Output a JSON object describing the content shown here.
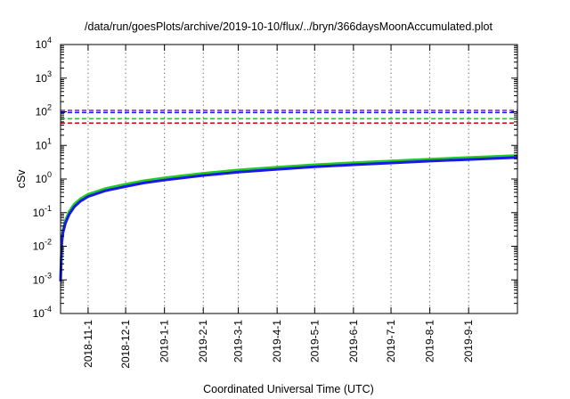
{
  "chart_data": {
    "type": "line",
    "title": "/data/run/goesPlots/archive/2019-10-10/flux/../bryn/366daysMoonAccumulated.plot",
    "xlabel": "Coordinated Universal Time (UTC)",
    "ylabel": "cSv",
    "yscale": "log",
    "ylim": [
      0.0001,
      10000
    ],
    "xlim": [
      "2018-10-10",
      "2019-10-10"
    ],
    "y_tick_labels": [
      {
        "value": 0.0001,
        "base": "10",
        "exp": "-4"
      },
      {
        "value": 0.001,
        "base": "10",
        "exp": "-3"
      },
      {
        "value": 0.01,
        "base": "10",
        "exp": "-2"
      },
      {
        "value": 0.1,
        "base": "10",
        "exp": "-1"
      },
      {
        "value": 1,
        "base": "10",
        "exp": "0"
      },
      {
        "value": 10,
        "base": "10",
        "exp": "1"
      },
      {
        "value": 100,
        "base": "10",
        "exp": "2"
      },
      {
        "value": 1000,
        "base": "10",
        "exp": "3"
      },
      {
        "value": 10000,
        "base": "10",
        "exp": "4"
      }
    ],
    "x_ticks": [
      {
        "date": "2018-11-01",
        "label": "2018-11-1"
      },
      {
        "date": "2018-12-01",
        "label": "2018-12-1"
      },
      {
        "date": "2019-01-01",
        "label": "2019-1-1"
      },
      {
        "date": "2019-02-01",
        "label": "2019-2-1"
      },
      {
        "date": "2019-03-01",
        "label": "2019-3-1"
      },
      {
        "date": "2019-04-01",
        "label": "2019-4-1"
      },
      {
        "date": "2019-05-01",
        "label": "2019-5-1"
      },
      {
        "date": "2019-06-01",
        "label": "2019-6-1"
      },
      {
        "date": "2019-07-01",
        "label": "2019-7-1"
      },
      {
        "date": "2019-08-01",
        "label": "2019-8-1"
      },
      {
        "date": "2019-09-01",
        "label": "2019-9-1"
      }
    ],
    "grid": true,
    "thresholds": [
      {
        "value": 110,
        "color": "#8a2be2"
      },
      {
        "value": 95,
        "color": "#1a1ae6"
      },
      {
        "value": 62,
        "color": "#22cc22"
      },
      {
        "value": 46,
        "color": "#e01010"
      }
    ],
    "series": [
      {
        "color": "#22cc22",
        "x": [
          "2018-10-10",
          "2018-10-11",
          "2018-10-12",
          "2018-10-14",
          "2018-10-17",
          "2018-10-21",
          "2018-10-26",
          "2018-11-01",
          "2018-11-15",
          "2018-12-01",
          "2018-12-15",
          "2019-01-01",
          "2019-02-01",
          "2019-03-01",
          "2019-04-01",
          "2019-05-01",
          "2019-06-01",
          "2019-07-01",
          "2019-08-01",
          "2019-09-01",
          "2019-10-10"
        ],
        "y": [
          0.001,
          0.015,
          0.03,
          0.06,
          0.11,
          0.18,
          0.26,
          0.35,
          0.52,
          0.7,
          0.88,
          1.08,
          1.48,
          1.85,
          2.25,
          2.65,
          3.05,
          3.45,
          3.9,
          4.35,
          5.0
        ]
      },
      {
        "color": "#1a1ae6",
        "x": [
          "2018-10-10",
          "2018-10-11",
          "2018-10-12",
          "2018-10-14",
          "2018-10-17",
          "2018-10-21",
          "2018-10-26",
          "2018-11-01",
          "2018-11-15",
          "2018-12-01",
          "2018-12-15",
          "2019-01-01",
          "2019-02-01",
          "2019-03-01",
          "2019-04-01",
          "2019-05-01",
          "2019-06-01",
          "2019-07-01",
          "2019-08-01",
          "2019-09-01",
          "2019-10-10"
        ],
        "y": [
          0.0009,
          0.013,
          0.026,
          0.05,
          0.09,
          0.15,
          0.22,
          0.3,
          0.45,
          0.6,
          0.76,
          0.93,
          1.28,
          1.6,
          1.95,
          2.3,
          2.65,
          3.0,
          3.4,
          3.8,
          4.4
        ]
      }
    ]
  }
}
